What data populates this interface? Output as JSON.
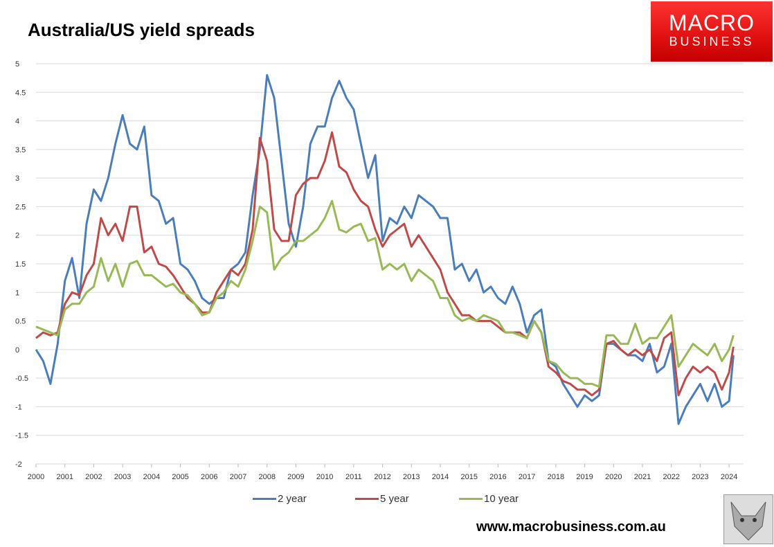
{
  "header": {
    "title": "Australia/US yield spreads"
  },
  "logo": {
    "line1": "MACRO",
    "line2": "BUSINESS"
  },
  "footer": {
    "website": "www.macrobusiness.com.au"
  },
  "colors": {
    "two_year": "#4a7ebb",
    "five_year": "#be4b48",
    "ten_year": "#98b954",
    "brand_red": "#e01010"
  },
  "chart_data": {
    "type": "line",
    "title": "Australia/US yield spreads",
    "xlabel": "",
    "ylabel": "",
    "ylim": [
      -2,
      5
    ],
    "yticks": [
      "5",
      "4.5",
      "4",
      "3.5",
      "3",
      "2.5",
      "2",
      "1.5",
      "1",
      "0.5",
      "0",
      "-0.5",
      "-1",
      "-1.5",
      "-2"
    ],
    "xticks": [
      "2000",
      "2001",
      "2002",
      "2003",
      "2004",
      "2005",
      "2006",
      "2007",
      "2008",
      "2009",
      "2010",
      "2011",
      "2012",
      "2013",
      "2014",
      "2015",
      "2016",
      "2017",
      "2018",
      "2019",
      "2020",
      "2021",
      "2022",
      "2023",
      "2024"
    ],
    "grid": true,
    "legend_position": "bottom",
    "x": [
      2000.0,
      2000.25,
      2000.5,
      2000.75,
      2001.0,
      2001.25,
      2001.5,
      2001.75,
      2002.0,
      2002.25,
      2002.5,
      2002.75,
      2003.0,
      2003.25,
      2003.5,
      2003.75,
      2004.0,
      2004.25,
      2004.5,
      2004.75,
      2005.0,
      2005.25,
      2005.5,
      2005.75,
      2006.0,
      2006.25,
      2006.5,
      2006.75,
      2007.0,
      2007.25,
      2007.5,
      2007.75,
      2008.0,
      2008.25,
      2008.5,
      2008.75,
      2009.0,
      2009.25,
      2009.5,
      2009.75,
      2010.0,
      2010.25,
      2010.5,
      2010.75,
      2011.0,
      2011.25,
      2011.5,
      2011.75,
      2012.0,
      2012.25,
      2012.5,
      2012.75,
      2013.0,
      2013.25,
      2013.5,
      2013.75,
      2014.0,
      2014.25,
      2014.5,
      2014.75,
      2015.0,
      2015.25,
      2015.5,
      2015.75,
      2016.0,
      2016.25,
      2016.5,
      2016.75,
      2017.0,
      2017.25,
      2017.5,
      2017.75,
      2018.0,
      2018.25,
      2018.5,
      2018.75,
      2019.0,
      2019.25,
      2019.5,
      2019.75,
      2020.0,
      2020.25,
      2020.5,
      2020.75,
      2021.0,
      2021.25,
      2021.5,
      2021.75,
      2022.0,
      2022.25,
      2022.5,
      2022.75,
      2023.0,
      2023.25,
      2023.5,
      2023.75,
      2024.0,
      2024.15
    ],
    "series": [
      {
        "name": "2 year",
        "values": [
          0.0,
          -0.2,
          -0.6,
          0.1,
          1.2,
          1.6,
          0.9,
          2.2,
          2.8,
          2.6,
          3.0,
          3.6,
          4.1,
          3.6,
          3.5,
          3.9,
          2.7,
          2.6,
          2.2,
          2.3,
          1.5,
          1.4,
          1.2,
          0.9,
          0.8,
          0.9,
          0.9,
          1.4,
          1.5,
          1.7,
          2.7,
          3.5,
          4.8,
          4.4,
          3.3,
          2.2,
          1.8,
          2.5,
          3.6,
          3.9,
          3.9,
          4.4,
          4.7,
          4.4,
          4.2,
          3.6,
          3.0,
          3.4,
          1.9,
          2.3,
          2.2,
          2.5,
          2.3,
          2.7,
          2.6,
          2.5,
          2.3,
          2.3,
          1.4,
          1.5,
          1.2,
          1.4,
          1.0,
          1.1,
          0.9,
          0.8,
          1.1,
          0.8,
          0.3,
          0.6,
          0.7,
          -0.2,
          -0.3,
          -0.6,
          -0.8,
          -1.0,
          -0.8,
          -0.9,
          -0.8,
          0.1,
          0.1,
          0.0,
          -0.1,
          -0.1,
          -0.2,
          0.1,
          -0.4,
          -0.3,
          0.1,
          -1.3,
          -1.0,
          -0.8,
          -0.6,
          -0.9,
          -0.6,
          -1.0,
          -0.9,
          -0.1
        ]
      },
      {
        "name": "5 year",
        "values": [
          0.2,
          0.3,
          0.25,
          0.3,
          0.8,
          1.0,
          0.95,
          1.3,
          1.5,
          2.3,
          2.0,
          2.2,
          1.9,
          2.5,
          2.5,
          1.7,
          1.8,
          1.5,
          1.45,
          1.3,
          1.1,
          0.9,
          0.8,
          0.65,
          0.65,
          1.0,
          1.2,
          1.4,
          1.3,
          1.5,
          2.1,
          3.7,
          3.3,
          2.1,
          1.9,
          1.9,
          2.7,
          2.9,
          3.0,
          3.0,
          3.3,
          3.8,
          3.2,
          3.1,
          2.8,
          2.6,
          2.5,
          2.1,
          1.8,
          2.0,
          2.1,
          2.2,
          1.8,
          2.0,
          1.8,
          1.6,
          1.4,
          1.0,
          0.8,
          0.6,
          0.6,
          0.5,
          0.5,
          0.5,
          0.4,
          0.3,
          0.3,
          0.3,
          0.2,
          0.5,
          0.3,
          -0.3,
          -0.4,
          -0.55,
          -0.6,
          -0.7,
          -0.7,
          -0.8,
          -0.7,
          0.1,
          0.15,
          0.0,
          -0.1,
          0.0,
          -0.1,
          0.0,
          -0.2,
          0.2,
          0.3,
          -0.8,
          -0.5,
          -0.3,
          -0.4,
          -0.3,
          -0.4,
          -0.7,
          -0.4,
          0.05
        ]
      },
      {
        "name": "10 year",
        "values": [
          0.4,
          0.35,
          0.3,
          0.25,
          0.7,
          0.8,
          0.8,
          1.0,
          1.1,
          1.6,
          1.2,
          1.5,
          1.1,
          1.5,
          1.55,
          1.3,
          1.3,
          1.2,
          1.1,
          1.15,
          1.0,
          0.95,
          0.8,
          0.6,
          0.65,
          0.9,
          1.0,
          1.2,
          1.1,
          1.4,
          1.9,
          2.5,
          2.4,
          1.4,
          1.6,
          1.7,
          1.9,
          1.9,
          2.0,
          2.1,
          2.3,
          2.6,
          2.1,
          2.05,
          2.15,
          2.2,
          1.9,
          1.95,
          1.4,
          1.5,
          1.4,
          1.5,
          1.2,
          1.4,
          1.3,
          1.2,
          0.9,
          0.9,
          0.6,
          0.5,
          0.55,
          0.5,
          0.6,
          0.55,
          0.5,
          0.3,
          0.3,
          0.25,
          0.2,
          0.5,
          0.3,
          -0.2,
          -0.25,
          -0.4,
          -0.5,
          -0.5,
          -0.6,
          -0.6,
          -0.65,
          0.25,
          0.25,
          0.1,
          0.1,
          0.45,
          0.1,
          0.2,
          0.2,
          0.4,
          0.6,
          -0.3,
          -0.1,
          0.1,
          0.0,
          -0.1,
          0.1,
          -0.2,
          0.0,
          0.25
        ]
      }
    ]
  }
}
